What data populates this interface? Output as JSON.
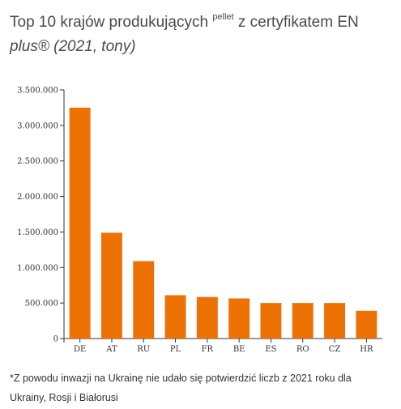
{
  "title": {
    "main": "Top 10 krajów produkujących ",
    "sup": "pellet",
    "after": " z certyfikatem EN",
    "italic": "plus® (2021, tony)"
  },
  "footnote": "*Z powodu inwazji na Ukrainę nie udało się potwierdzić liczb z 2021 roku dla Ukrainy, Rosji i Białorusi",
  "colors": {
    "bar": "#EE7203",
    "axis": "#333333"
  },
  "chart_data": {
    "type": "bar",
    "categories": [
      "DE",
      "AT",
      "RU",
      "PL",
      "FR",
      "BE",
      "ES",
      "RO",
      "CZ",
      "HR"
    ],
    "values": [
      3250000,
      1490000,
      1090000,
      610000,
      585000,
      565000,
      500000,
      500000,
      500000,
      390000
    ],
    "ylim": [
      0,
      3500000
    ],
    "yticks": [
      0,
      500000,
      1000000,
      1500000,
      2000000,
      2500000,
      3000000,
      3500000
    ],
    "ytick_labels": [
      "0",
      "500.000",
      "1.000.000",
      "1.500.000",
      "2.000.000",
      "2.500.000",
      "3.000.000",
      "3.500.000"
    ],
    "grid": false,
    "legend": "none"
  }
}
